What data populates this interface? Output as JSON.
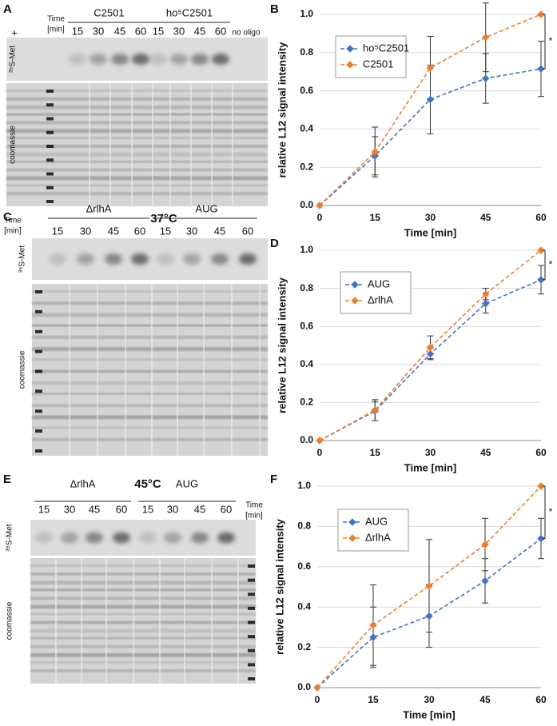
{
  "gels": [
    {
      "panel": "A",
      "control": "+",
      "time_label": [
        "Time",
        "[min]"
      ],
      "groups": [
        {
          "name": "C2501",
          "lanes": [
            15,
            30,
            45,
            60
          ]
        },
        {
          "name": "ho⁵C2501",
          "lanes": [
            15,
            30,
            45,
            60
          ]
        }
      ],
      "extra_lane": "no oligo",
      "rows": [
        "³⁵S-Met",
        "coomassie"
      ]
    },
    {
      "panel": "C",
      "temperature": "37°C",
      "time_label": [
        "Time",
        "[min]"
      ],
      "groups": [
        {
          "name": "ΔrlhA",
          "lanes": [
            15,
            30,
            45,
            60
          ]
        },
        {
          "name": "AUG",
          "lanes": [
            15,
            30,
            45,
            60
          ]
        }
      ],
      "rows": [
        "³⁵S-Met",
        "coomassie"
      ]
    },
    {
      "panel": "E",
      "temperature": "45°C",
      "time_label": [
        "Time",
        "[min]"
      ],
      "groups": [
        {
          "name": "ΔrlhA",
          "lanes": [
            15,
            30,
            45,
            60
          ]
        },
        {
          "name": "AUG",
          "lanes": [
            15,
            30,
            45,
            60
          ]
        }
      ],
      "rows": [
        "³⁵S-Met",
        "coomassie"
      ]
    }
  ],
  "chart_data": [
    {
      "type": "line",
      "panel_label": "B",
      "x_label": "Time [min]",
      "y_label": "relative L12 signal intensity",
      "x": [
        0,
        15,
        30,
        45,
        60
      ],
      "xlim": [
        0,
        60
      ],
      "xticks": [
        0,
        15,
        30,
        45,
        60
      ],
      "ylim": [
        0,
        1
      ],
      "yticks": [
        {
          "value": 0,
          "label": "0.0"
        },
        0.2,
        0.4,
        0.6,
        0.8,
        {
          "value": 1,
          "label": "1.0"
        }
      ],
      "grid": true,
      "legend": "upper left",
      "annotation": "*",
      "series": [
        {
          "name": "ho⁵C2501",
          "color": "#4472c4",
          "values": [
            0,
            0.26,
            0.555,
            0.665,
            0.715
          ],
          "errors": [
            0,
            0.1,
            0.18,
            0.13,
            0.145
          ]
        },
        {
          "name": "C2501",
          "color": "#ed7d31",
          "values": [
            0,
            0.28,
            0.72,
            0.88,
            1.0
          ],
          "errors": [
            0,
            0.13,
            0.165,
            0.18,
            0
          ]
        }
      ]
    },
    {
      "type": "line",
      "panel_label": "D",
      "x_label": "Time [min]",
      "y_label": "relative L12 signal intensity",
      "x": [
        0,
        15,
        30,
        45,
        60
      ],
      "xlim": [
        0,
        60
      ],
      "xticks": [
        0,
        15,
        30,
        45,
        60
      ],
      "ylim": [
        0,
        1
      ],
      "yticks": [
        {
          "value": 0,
          "label": "0.0"
        },
        0.2,
        0.4,
        0.6,
        0.8,
        {
          "value": 1,
          "label": "1.0"
        }
      ],
      "grid": true,
      "legend": "upper left",
      "annotation": "*",
      "series": [
        {
          "name": "AUG",
          "color": "#4472c4",
          "values": [
            0,
            0.155,
            0.455,
            0.72,
            0.845
          ],
          "errors": [
            0,
            0.05,
            0.03,
            0.05,
            0.075
          ]
        },
        {
          "name": "ΔrlhA",
          "color": "#ed7d31",
          "values": [
            0,
            0.16,
            0.49,
            0.77,
            1.0
          ],
          "errors": [
            0,
            0.055,
            0.06,
            0.03,
            0
          ]
        }
      ]
    },
    {
      "type": "line",
      "panel_label": "F",
      "x_label": "Time [min]",
      "y_label": "relative L12 signal intensity",
      "x": [
        0,
        15,
        30,
        45,
        60
      ],
      "xlim": [
        0,
        60
      ],
      "xticks": [
        0,
        15,
        30,
        45,
        60
      ],
      "ylim": [
        0,
        1
      ],
      "yticks": [
        {
          "value": 0,
          "label": "0.0"
        },
        0.2,
        0.4,
        0.6,
        0.8,
        {
          "value": 1,
          "label": "1.0"
        }
      ],
      "grid": true,
      "legend": "upper left",
      "annotation": "*",
      "series": [
        {
          "name": "AUG",
          "color": "#4472c4",
          "values": [
            0,
            0.25,
            0.355,
            0.53,
            0.74
          ],
          "errors": [
            0,
            0.15,
            0.155,
            0.11,
            0.1
          ]
        },
        {
          "name": "ΔrlhA",
          "color": "#ed7d31",
          "values": [
            0,
            0.31,
            0.505,
            0.71,
            1.0
          ],
          "errors": [
            0,
            0.2,
            0.23,
            0.13,
            0
          ]
        }
      ]
    }
  ]
}
